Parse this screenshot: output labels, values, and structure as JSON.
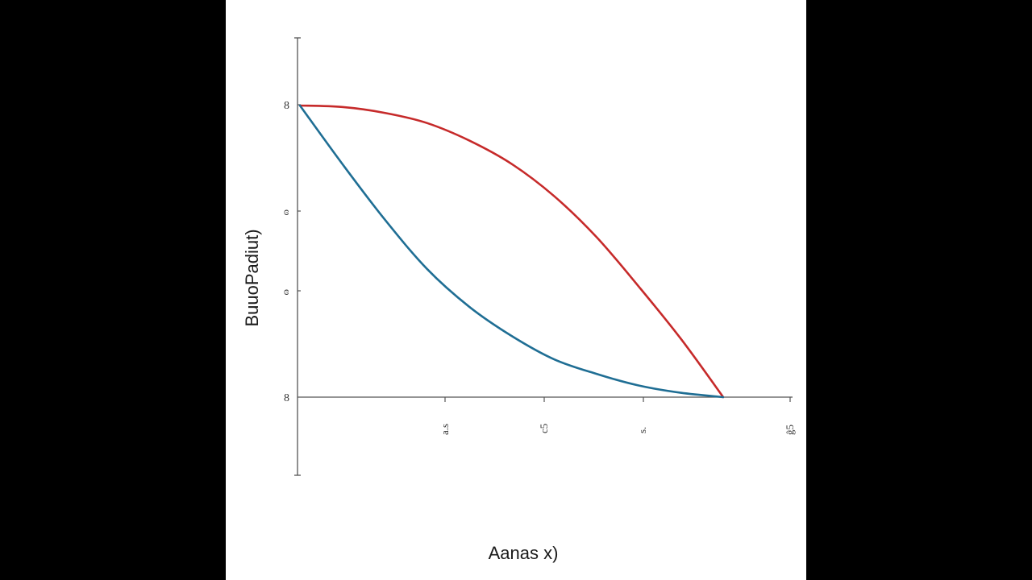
{
  "chart_data": {
    "type": "line",
    "xlabel": "Aanas x)",
    "ylabel": "BuuoPadiut)",
    "x_tick_labels": [
      "a.s",
      "c5",
      "s.",
      "ĝ5"
    ],
    "y_tick_labels": [
      "8",
      "ɞ",
      "ɞ",
      "8"
    ],
    "series": [
      {
        "color": "#c62a2a",
        "points": [
          [
            0,
            1
          ],
          [
            0.1,
            0.995
          ],
          [
            0.2,
            0.975
          ],
          [
            0.3,
            0.94
          ],
          [
            0.4,
            0.88
          ],
          [
            0.5,
            0.8
          ],
          [
            0.6,
            0.69
          ],
          [
            0.7,
            0.55
          ],
          [
            0.8,
            0.38
          ],
          [
            0.9,
            0.2
          ],
          [
            1.0,
            0
          ]
        ]
      },
      {
        "color": "#1f6e94",
        "points": [
          [
            0,
            1
          ],
          [
            0.1,
            0.8
          ],
          [
            0.2,
            0.61
          ],
          [
            0.3,
            0.44
          ],
          [
            0.4,
            0.31
          ],
          [
            0.5,
            0.21
          ],
          [
            0.6,
            0.13
          ],
          [
            0.7,
            0.08
          ],
          [
            0.8,
            0.04
          ],
          [
            0.9,
            0.015
          ],
          [
            1.0,
            0
          ]
        ]
      }
    ],
    "grid": false
  }
}
